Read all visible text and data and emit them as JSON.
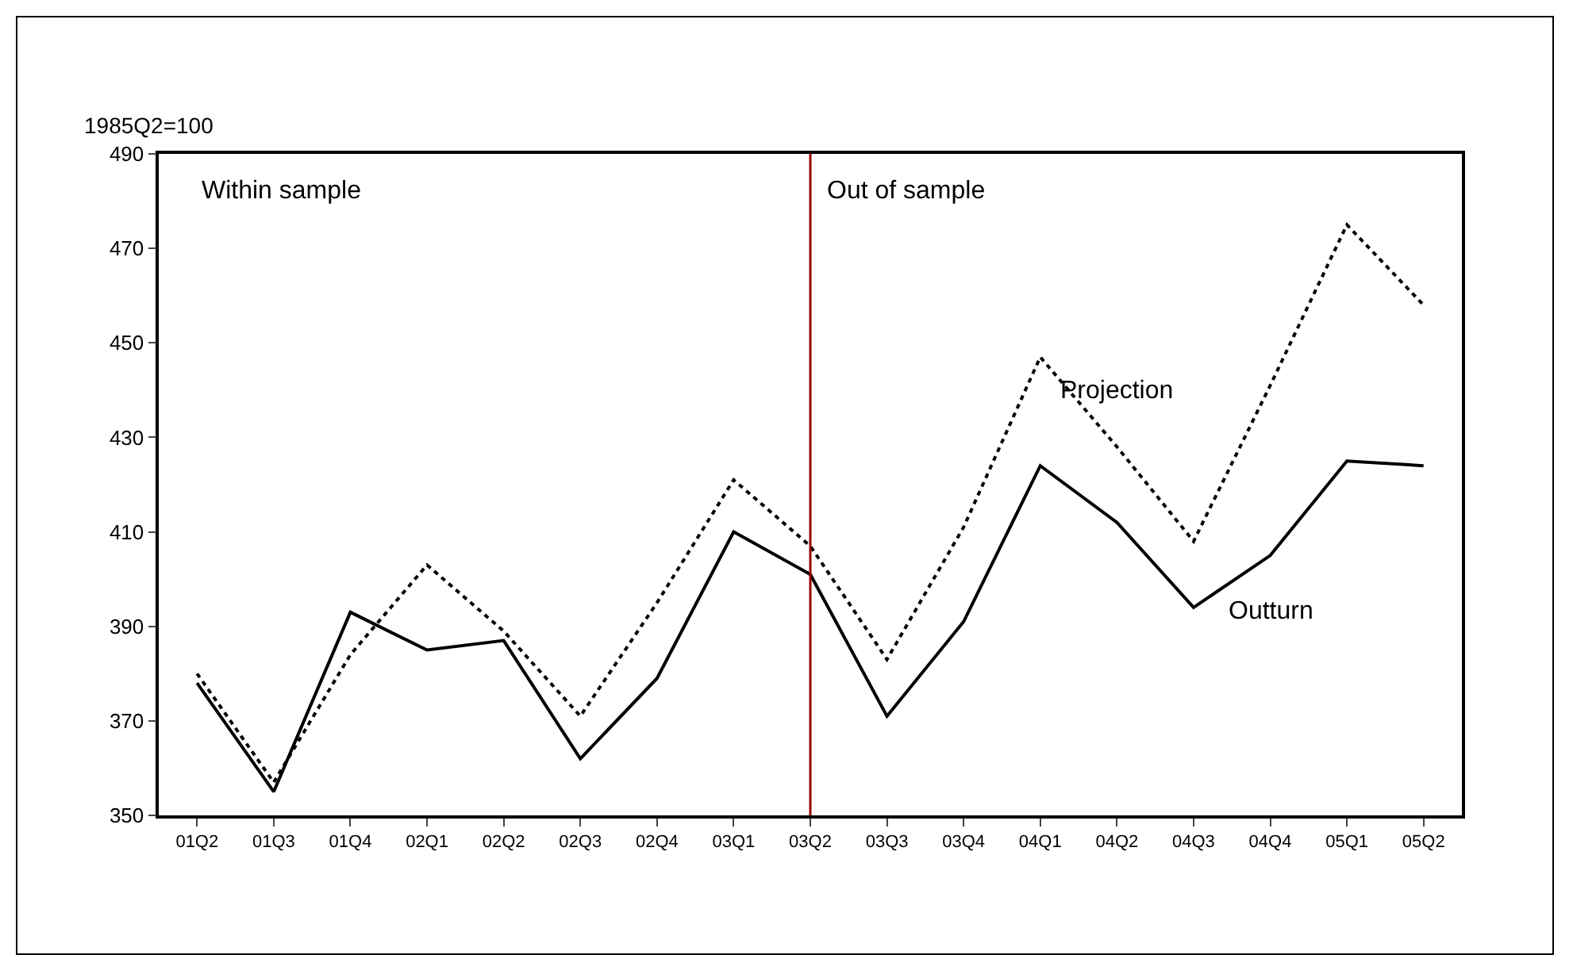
{
  "chart_data": {
    "type": "line",
    "ylabel": "1985Q2=100",
    "categories": [
      "01Q2",
      "01Q3",
      "01Q4",
      "02Q1",
      "02Q2",
      "02Q3",
      "02Q4",
      "03Q1",
      "03Q2",
      "03Q3",
      "03Q4",
      "04Q1",
      "04Q2",
      "04Q3",
      "04Q4",
      "05Q1",
      "05Q2"
    ],
    "series": [
      {
        "name": "Outturn",
        "color": "#000000",
        "line_style": "solid",
        "values": [
          378,
          355,
          393,
          385,
          387,
          362,
          379,
          410,
          401,
          371,
          391,
          424,
          412,
          394,
          405,
          425,
          424
        ]
      },
      {
        "name": "Projection",
        "color": "#000000",
        "line_style": "dotted",
        "values": [
          380,
          357,
          384,
          403,
          389,
          371,
          395,
          421,
          407,
          383,
          411,
          447,
          428,
          408,
          441,
          475,
          458
        ]
      }
    ],
    "ylim": [
      350,
      490
    ],
    "yticks": [
      350,
      370,
      390,
      410,
      430,
      450,
      470,
      490
    ],
    "ref_lines": [
      {
        "axis": "x",
        "value": "03Q2",
        "color": "#990000"
      }
    ],
    "annotations": [
      "Within sample",
      "Out of sample"
    ],
    "grid": false,
    "legend": false,
    "marker": "none"
  }
}
